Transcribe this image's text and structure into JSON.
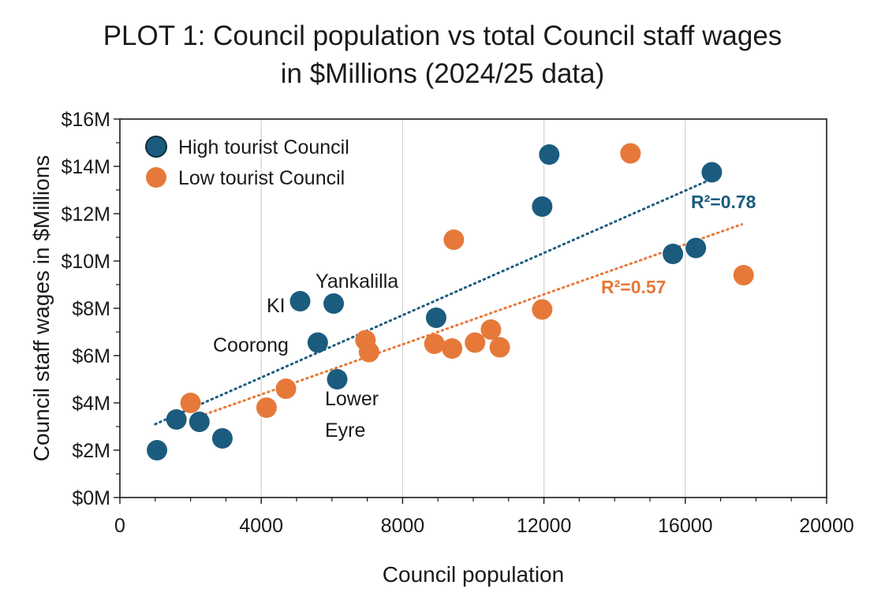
{
  "chart_data": {
    "type": "scatter",
    "title_line1": "PLOT 1: Council population vs total Council staff wages",
    "title_line2": "in $Millions (2024/25 data)",
    "xlabel": "Council population",
    "ylabel": "Council staff wages in $Millions",
    "xlim": [
      0,
      20000
    ],
    "ylim": [
      0,
      16
    ],
    "x_ticks": [
      0,
      4000,
      8000,
      12000,
      16000,
      20000
    ],
    "x_tick_labels": [
      "0",
      "4000",
      "8000",
      "12000",
      "16000",
      "20000"
    ],
    "y_ticks": [
      0,
      2,
      4,
      6,
      8,
      10,
      12,
      14,
      16
    ],
    "y_tick_labels": [
      "$0M",
      "$2M",
      "$4M",
      "$6M",
      "$8M",
      "$10M",
      "$12M",
      "$14M",
      "$16M"
    ],
    "grid": "vertical",
    "legend_position": "top-left",
    "series": [
      {
        "name": "High tourist Council",
        "color": "#1b5c7e",
        "points": [
          {
            "x": 1050,
            "y": 2.0
          },
          {
            "x": 1600,
            "y": 3.3
          },
          {
            "x": 2250,
            "y": 3.2
          },
          {
            "x": 2900,
            "y": 2.5
          },
          {
            "x": 5100,
            "y": 8.3
          },
          {
            "x": 5600,
            "y": 6.55
          },
          {
            "x": 6050,
            "y": 8.2
          },
          {
            "x": 6150,
            "y": 5.0
          },
          {
            "x": 8950,
            "y": 7.6
          },
          {
            "x": 11950,
            "y": 12.3
          },
          {
            "x": 12150,
            "y": 14.5
          },
          {
            "x": 15650,
            "y": 10.3
          },
          {
            "x": 16300,
            "y": 10.55
          },
          {
            "x": 16750,
            "y": 13.75
          }
        ],
        "trendline": {
          "x": [
            1000,
            16800
          ],
          "y": [
            3.1,
            13.5
          ]
        },
        "r2_label": "R²=0.78"
      },
      {
        "name": "Low tourist Council",
        "color": "#e6793a",
        "points": [
          {
            "x": 2000,
            "y": 4.0
          },
          {
            "x": 4150,
            "y": 3.8
          },
          {
            "x": 4700,
            "y": 4.6
          },
          {
            "x": 6950,
            "y": 6.65
          },
          {
            "x": 7050,
            "y": 6.15
          },
          {
            "x": 8900,
            "y": 6.5
          },
          {
            "x": 9400,
            "y": 6.3
          },
          {
            "x": 9450,
            "y": 10.9
          },
          {
            "x": 10050,
            "y": 6.55
          },
          {
            "x": 10500,
            "y": 7.1
          },
          {
            "x": 10750,
            "y": 6.35
          },
          {
            "x": 11950,
            "y": 7.95
          },
          {
            "x": 14450,
            "y": 14.55
          },
          {
            "x": 17650,
            "y": 9.4
          }
        ],
        "trendline": {
          "x": [
            2000,
            17600
          ],
          "y": [
            3.3,
            11.55
          ]
        },
        "r2_label": "R²=0.57"
      }
    ],
    "annotations": [
      {
        "text": "KI",
        "x": 5100,
        "y": 8.3
      },
      {
        "text": "Yankalilla",
        "x": 6050,
        "y": 8.2
      },
      {
        "text": "Coorong",
        "x": 5600,
        "y": 6.55
      },
      {
        "text": "Lower",
        "x": 6150,
        "y": 5.0
      },
      {
        "text": "Eyre",
        "x": 6150,
        "y": 5.0
      }
    ]
  }
}
